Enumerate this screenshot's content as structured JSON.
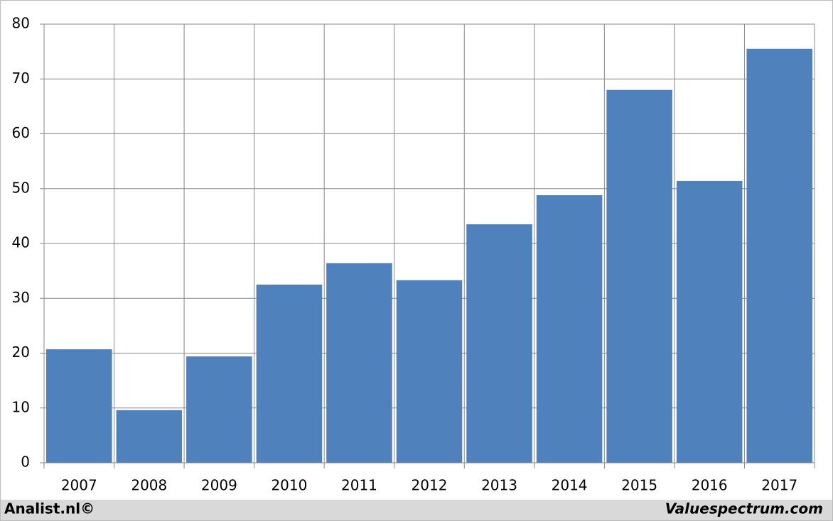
{
  "chart_data": {
    "type": "bar",
    "categories": [
      "2007",
      "2008",
      "2009",
      "2010",
      "2011",
      "2012",
      "2013",
      "2014",
      "2015",
      "2016",
      "2017"
    ],
    "values": [
      20.7,
      9.6,
      19.4,
      32.5,
      36.4,
      33.3,
      43.5,
      48.8,
      68.0,
      51.4,
      75.5
    ],
    "color": "#4f81bd",
    "ylim": [
      0,
      80
    ],
    "yticks": [
      0,
      10,
      20,
      30,
      40,
      50,
      60,
      70,
      80
    ],
    "grid": true,
    "footer_left": "Analist.nl©",
    "footer_right": "Valuespectrum.com"
  }
}
